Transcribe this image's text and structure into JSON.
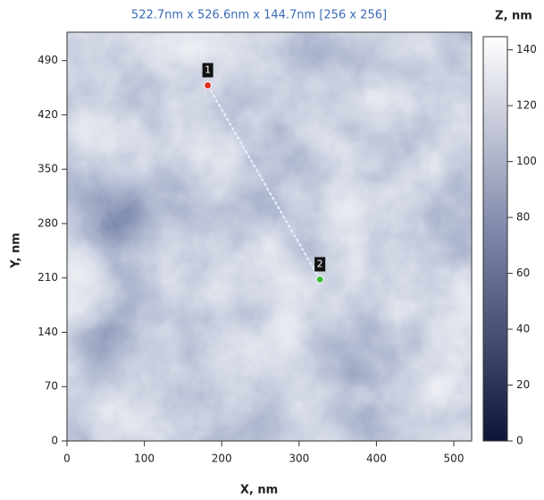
{
  "chart_data": {
    "type": "heatmap-image",
    "title": "522.7nm x 526.6nm x 144.7nm [256 x 256]",
    "x_label": "X, nm",
    "y_label": "Y, nm",
    "colorbar_label": "Z, nm",
    "xlim": [
      0,
      522.7
    ],
    "ylim": [
      0,
      526.6
    ],
    "zlim": [
      0,
      144.7
    ],
    "xticks": [
      0,
      100,
      200,
      300,
      400,
      500
    ],
    "yticks": [
      0,
      70,
      140,
      210,
      280,
      350,
      420,
      490
    ],
    "zticks": [
      0,
      20,
      40,
      60,
      80,
      100,
      120,
      140
    ],
    "colormap": [
      "#0e1638",
      "#ffffff"
    ],
    "markers": [
      {
        "label": "1",
        "x": 182,
        "y": 458,
        "color": "#e0301e"
      },
      {
        "label": "2",
        "x": 327,
        "y": 208,
        "color": "#3bbf3b"
      }
    ]
  }
}
